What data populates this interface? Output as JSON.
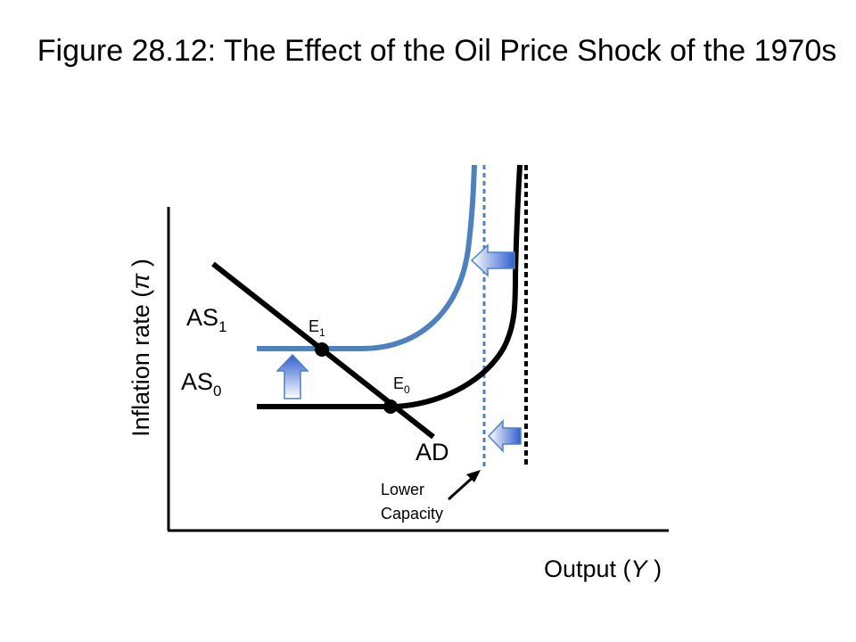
{
  "title": "Figure 28.12: The Effect of the Oil Price Shock of the 1970s",
  "axes": {
    "y_label": "Inflation rate (",
    "y_symbol": "π",
    "y_close": " )",
    "x_label": "Output (",
    "x_symbol": "Y",
    "x_close": " )"
  },
  "curves": {
    "as1": {
      "main": "AS",
      "sub": "1"
    },
    "as0": {
      "main": "AS",
      "sub": "0"
    },
    "ad": "AD"
  },
  "points": {
    "e1": {
      "main": "E",
      "sub": "1"
    },
    "e0": {
      "main": "E",
      "sub": "0"
    }
  },
  "annotation": {
    "line1": "Lower",
    "line2": "Capacity"
  },
  "colors": {
    "shifted_curve": "#4f81bd",
    "original_curve": "#000000",
    "arrow_light": "#ffffff",
    "arrow_dark": "#3366cc"
  }
}
